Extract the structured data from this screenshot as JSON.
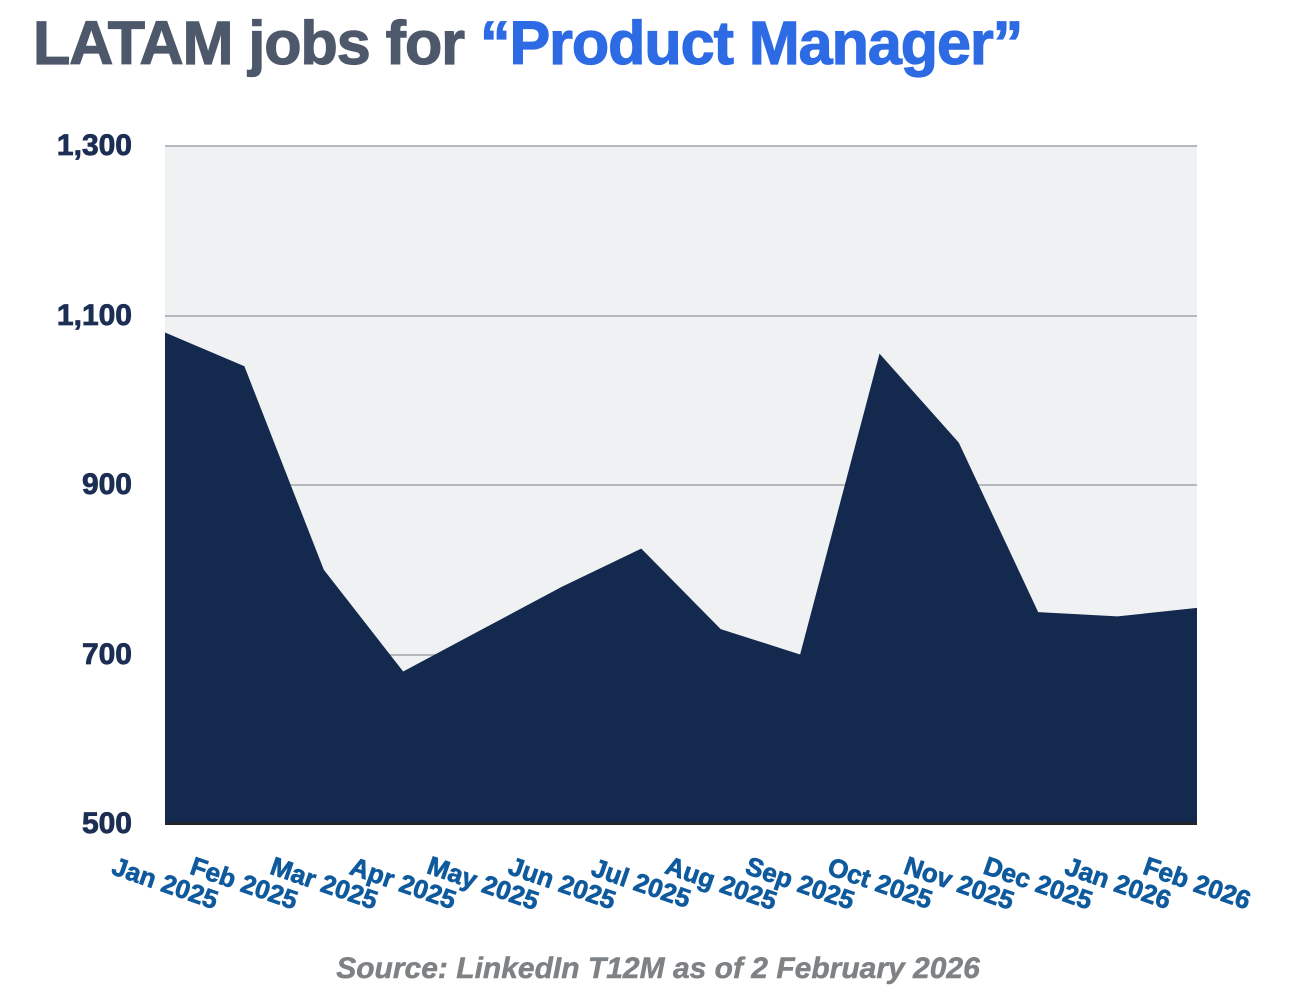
{
  "title": {
    "prefix": "LATAM jobs for ",
    "highlight": "“Product Manager”"
  },
  "source": "Source: LinkedIn T12M as of 2 February 2026",
  "colors": {
    "title-text": "#4e586b",
    "title-accent": "#2d6be4",
    "area-fill": "#132a4e",
    "ytick-color": "#1c2e54",
    "xtick-color": "#0e5a9d",
    "plot-bg": "#f0f1f3",
    "grid-color": "#b4b7bc",
    "axis-line": "#23252d",
    "source-color": "#7f8285"
  },
  "chart_data": {
    "type": "area",
    "title": "LATAM jobs for “Product Manager”",
    "categories": [
      "Jan 2025",
      "Feb 2025",
      "Mar 2025",
      "Apr 2025",
      "May 2025",
      "Jun 2025",
      "Jul 2025",
      "Aug 2025",
      "Sep 2025",
      "Oct 2025",
      "Nov 2025",
      "Dec 2025",
      "Jan 2026",
      "Feb 2026"
    ],
    "values": [
      1080,
      1040,
      800,
      680,
      730,
      780,
      825,
      730,
      700,
      1055,
      950,
      750,
      745,
      755
    ],
    "xlabel": "",
    "ylabel": "",
    "ylim": [
      500,
      1300
    ],
    "yticks": [
      500,
      700,
      900,
      1100,
      1300
    ],
    "grid": true,
    "legend": "none",
    "x_tick_rotation_deg": 19,
    "caption": "Source: LinkedIn T12M as of 2 February 2026"
  }
}
